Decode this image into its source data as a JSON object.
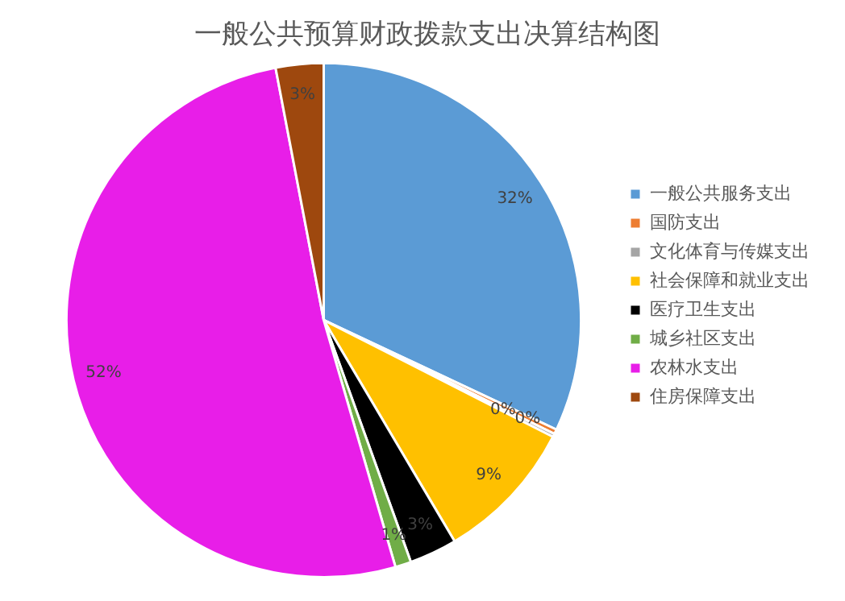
{
  "chart_data": {
    "type": "pie",
    "title": "一般公共预算财政拨款支出决算结构图",
    "categories": [
      "一般公共服务支出",
      "国防支出",
      "文化体育与传媒支出",
      "社会保障和就业支出",
      "医疗卫生支出",
      "城乡社区支出",
      "农林水支出",
      "住房保障支出"
    ],
    "values": [
      32,
      0.3,
      0.2,
      9,
      3,
      1,
      51.5,
      3
    ],
    "value_labels": [
      "32%",
      "0%",
      "0%",
      "9%",
      "3%",
      "1%",
      "52%",
      "3%"
    ],
    "colors": [
      "#5b9bd5",
      "#ed7d31",
      "#a5a5a5",
      "#ffc000",
      "#000000",
      "#70ad47",
      "#e81ee8",
      "#9e480e"
    ],
    "legend": "right"
  }
}
